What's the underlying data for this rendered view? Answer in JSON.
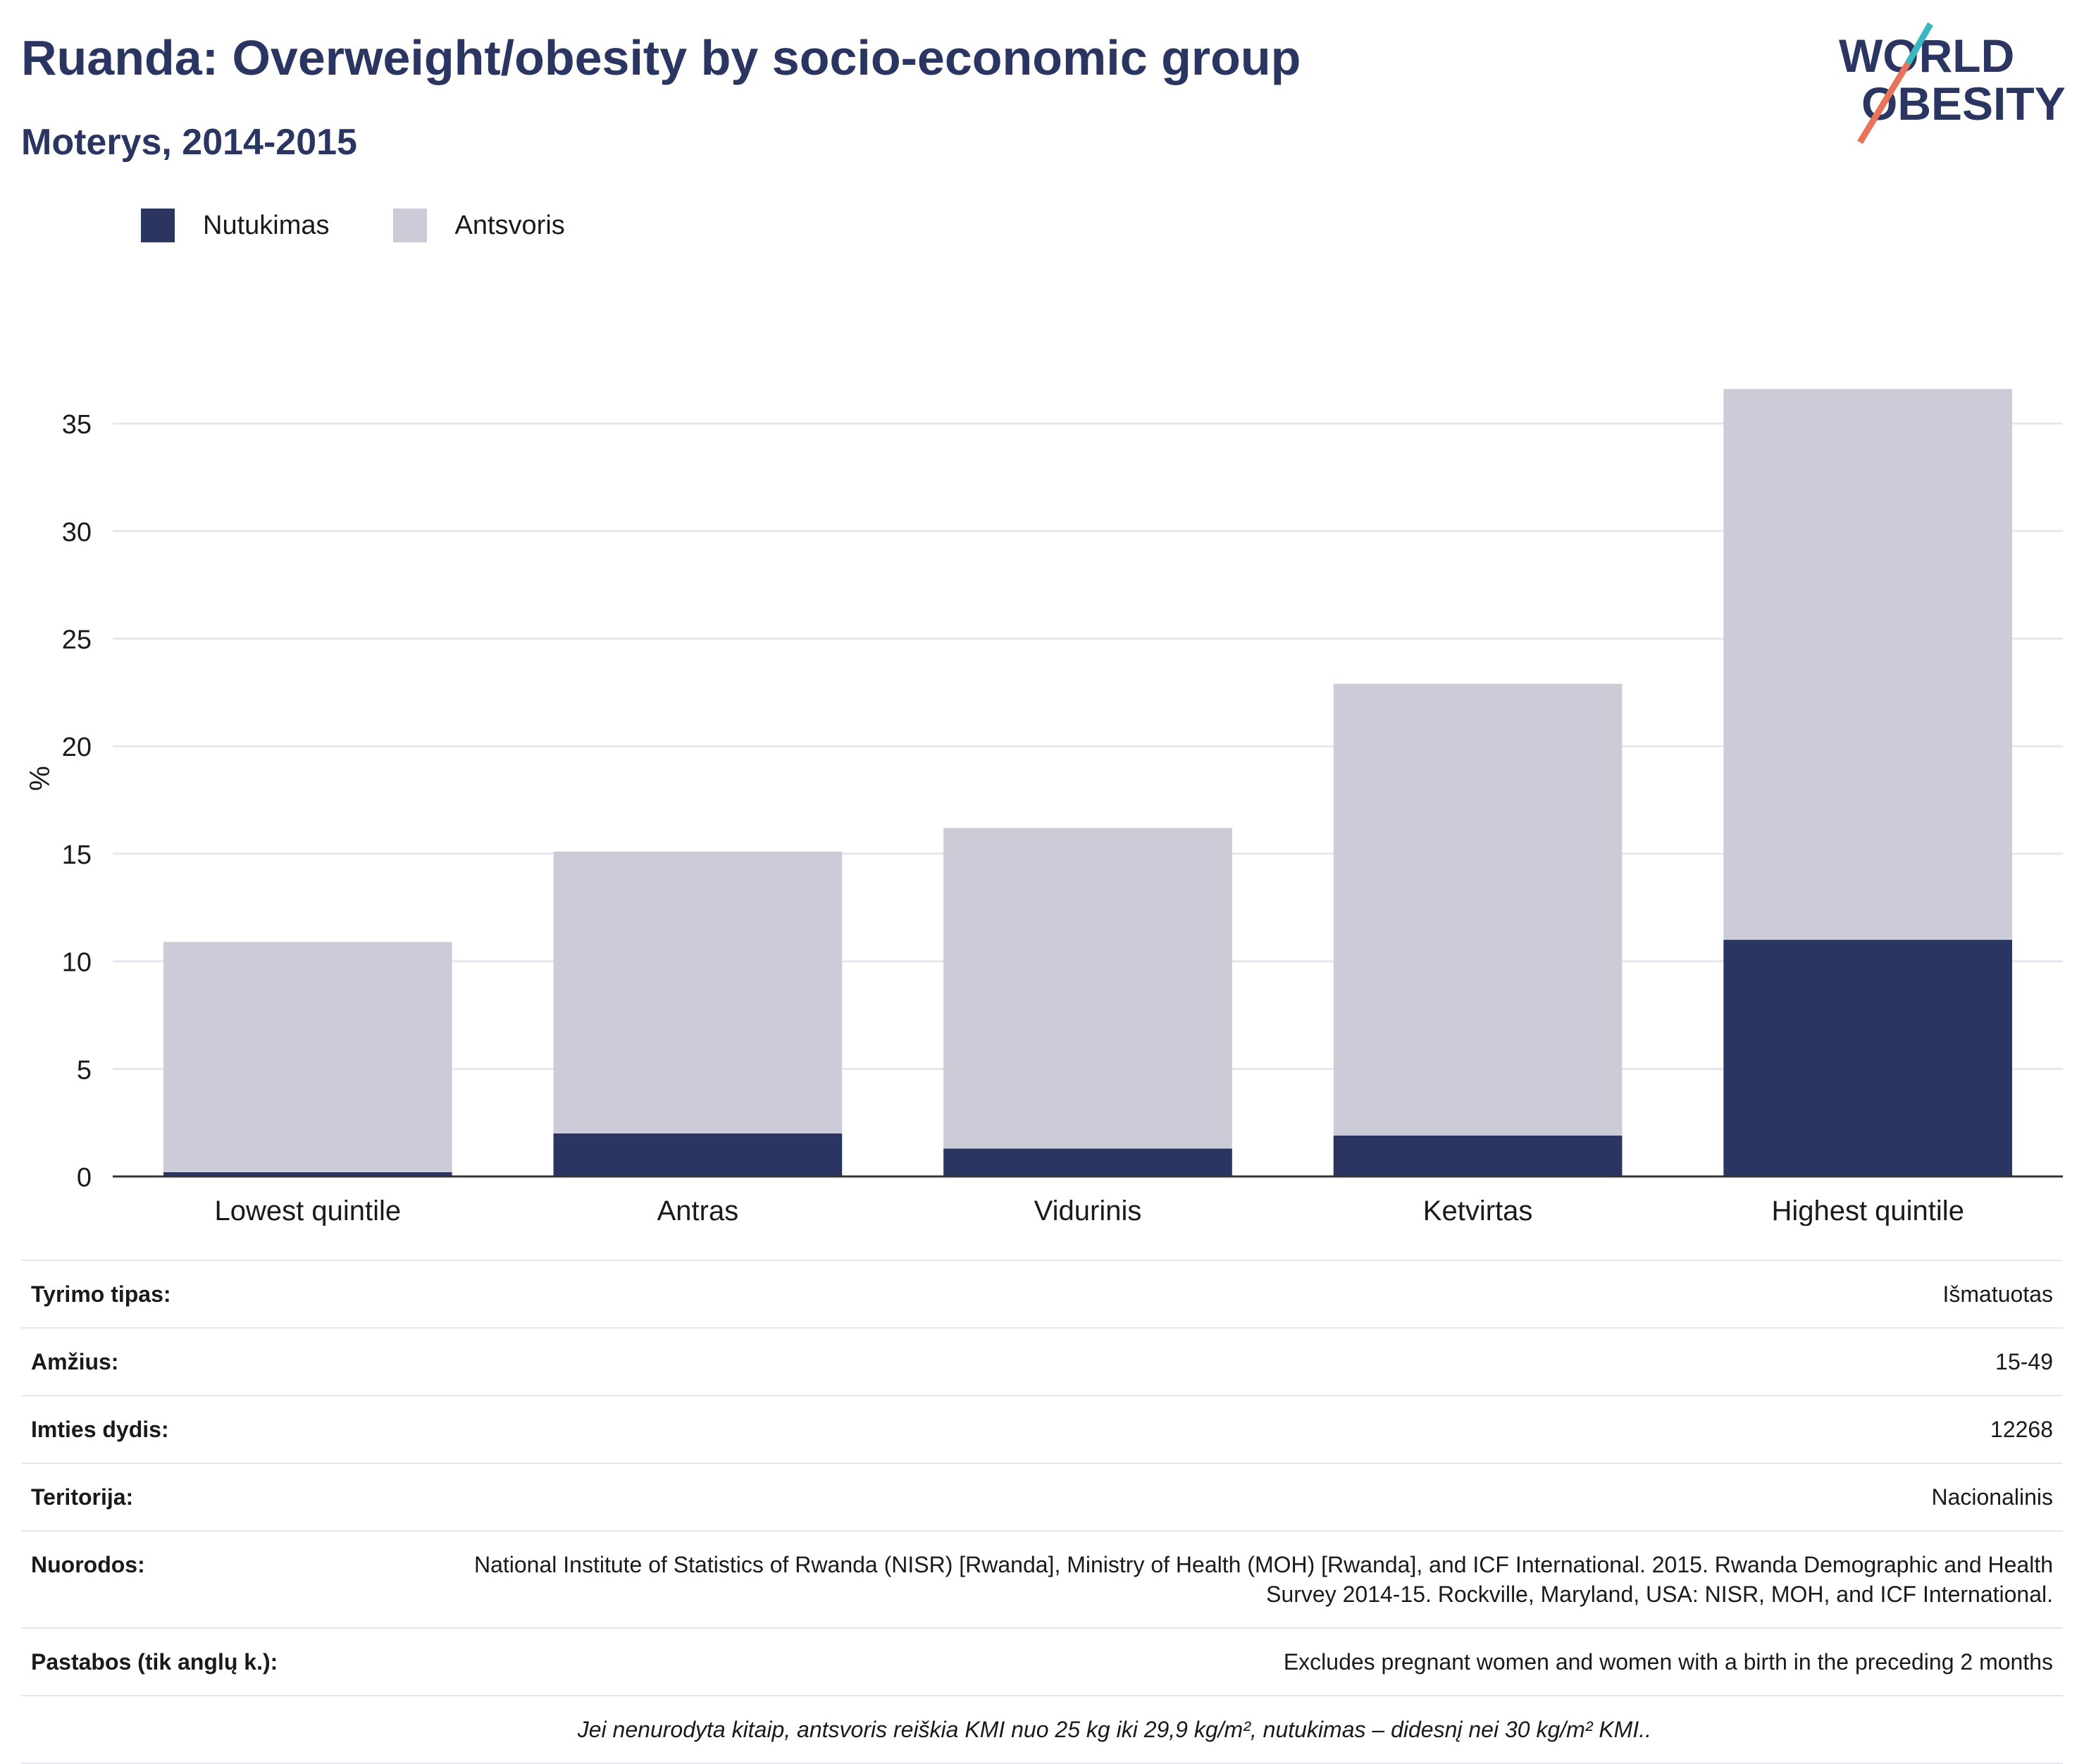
{
  "header": {
    "title": "Ruanda: Overweight/obesity by socio-economic group",
    "subtitle": "Moterys, 2014-2015"
  },
  "logo": {
    "line1": "WORLD",
    "line2": "OBESITY",
    "icon": "world-obesity-logo"
  },
  "colors": {
    "obesity": "#2a3561",
    "overweight": "#cbccd8",
    "accent_teal": "#3ab7bf",
    "accent_coral": "#e8735a"
  },
  "legend": [
    {
      "label": "Nutukimas",
      "color": "#2a3561"
    },
    {
      "label": "Antsvoris",
      "color": "#cbccd8"
    }
  ],
  "chart_data": {
    "type": "bar",
    "stacked": true,
    "title": "Ruanda: Overweight/obesity by socio-economic group",
    "subtitle": "Moterys, 2014-2015",
    "ylabel": "%",
    "xlabel": "",
    "ylim": [
      0,
      37
    ],
    "yticks": [
      0,
      5,
      10,
      15,
      20,
      25,
      30,
      35
    ],
    "grid": true,
    "legend_position": "top-left",
    "categories": [
      "Lowest quintile",
      "Antras",
      "Vidurinis",
      "Ketvirtas",
      "Highest quintile"
    ],
    "series": [
      {
        "name": "Nutukimas",
        "values": [
          0.2,
          2.0,
          1.3,
          1.9,
          11.0
        ]
      },
      {
        "name": "Antsvoris",
        "values": [
          10.7,
          13.1,
          14.9,
          21.0,
          25.6
        ]
      }
    ]
  },
  "info": {
    "rows": [
      {
        "key": "Tyrimo tipas:",
        "value": "Išmatuotas"
      },
      {
        "key": "Amžius:",
        "value": "15-49"
      },
      {
        "key": "Imties dydis:",
        "value": "12268"
      },
      {
        "key": "Teritorija:",
        "value": "Nacionalinis"
      },
      {
        "key": "Nuorodos:",
        "value": "National Institute of Statistics of Rwanda (NISR) [Rwanda], Ministry of Health (MOH) [Rwanda], and ICF International. 2015. Rwanda Demographic and Health Survey 2014-15. Rockville, Maryland, USA: NISR, MOH, and ICF International."
      },
      {
        "key": "Pastabos (tik anglų k.):",
        "value": "Excludes pregnant women and women with a birth in the preceding 2 months"
      }
    ],
    "footnote": "Jei nenurodyta kitaip, antsvoris reiškia KMI nuo 25 kg iki 29,9 kg/m², nutukimas – didesnį nei 30 kg/m² KMI.."
  }
}
